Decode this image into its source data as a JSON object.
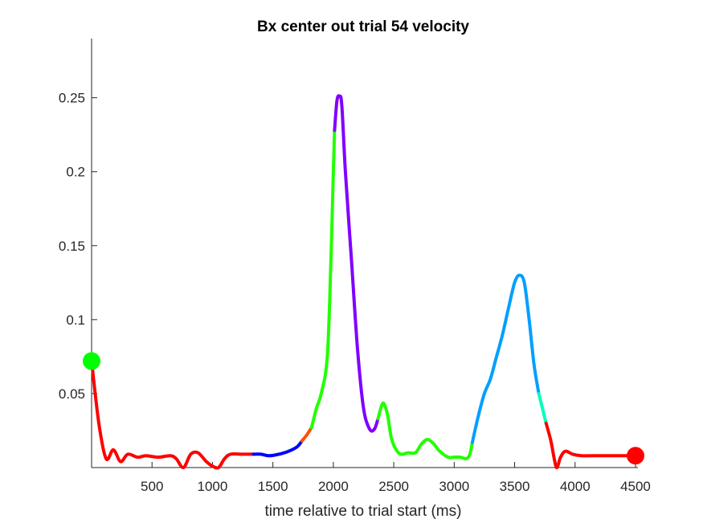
{
  "chart_data": {
    "type": "line",
    "title": "Bx  center out trial 54 velocity",
    "xlabel": "time relative to trial start (ms)",
    "ylabel": "",
    "xlim": [
      0,
      4520
    ],
    "ylim": [
      0,
      0.29
    ],
    "xticks": [
      500,
      1000,
      1500,
      2000,
      2500,
      3000,
      3500,
      4000,
      4500
    ],
    "xtick_labels": [
      "500",
      "1000",
      "1500",
      "2000",
      "2500",
      "3000",
      "3500",
      "4000",
      "4500"
    ],
    "yticks": [
      0.05,
      0.1,
      0.15,
      0.2,
      0.25
    ],
    "ytick_labels": [
      "0.05",
      "0.1",
      "0.15",
      "0.2",
      "0.25"
    ],
    "grid": false,
    "segments": [
      {
        "color": "#ff0000",
        "points": [
          [
            0,
            0.072
          ],
          [
            60,
            0.03
          ],
          [
            120,
            0.006
          ],
          [
            180,
            0.012
          ],
          [
            240,
            0.004
          ],
          [
            300,
            0.009
          ],
          [
            380,
            0.007
          ],
          [
            450,
            0.008
          ],
          [
            550,
            0.007
          ],
          [
            650,
            0.008
          ],
          [
            700,
            0.006
          ],
          [
            760,
            0.0
          ],
          [
            820,
            0.009
          ],
          [
            880,
            0.01
          ],
          [
            950,
            0.004
          ],
          [
            1000,
            0.001
          ],
          [
            1050,
            0.0
          ],
          [
            1100,
            0.006
          ],
          [
            1150,
            0.009
          ],
          [
            1250,
            0.009
          ],
          [
            1340,
            0.009
          ]
        ]
      },
      {
        "color": "#0000ff",
        "points": [
          [
            1340,
            0.009
          ],
          [
            1400,
            0.009
          ],
          [
            1470,
            0.008
          ],
          [
            1550,
            0.009
          ],
          [
            1630,
            0.011
          ],
          [
            1700,
            0.014
          ],
          [
            1740,
            0.018
          ]
        ]
      },
      {
        "color": "#ff5000",
        "points": [
          [
            1740,
            0.018
          ],
          [
            1780,
            0.022
          ],
          [
            1820,
            0.027
          ]
        ]
      },
      {
        "color": "#22ff00",
        "points": [
          [
            1820,
            0.027
          ],
          [
            1860,
            0.04
          ],
          [
            1900,
            0.05
          ],
          [
            1950,
            0.075
          ],
          [
            1980,
            0.14
          ],
          [
            2000,
            0.2
          ],
          [
            2010,
            0.228
          ]
        ]
      },
      {
        "color": "#8000ff",
        "points": [
          [
            2010,
            0.228
          ],
          [
            2030,
            0.248
          ],
          [
            2050,
            0.251
          ],
          [
            2070,
            0.245
          ],
          [
            2100,
            0.2
          ],
          [
            2150,
            0.14
          ],
          [
            2200,
            0.08
          ],
          [
            2250,
            0.04
          ],
          [
            2300,
            0.026
          ],
          [
            2340,
            0.026
          ],
          [
            2370,
            0.033
          ]
        ]
      },
      {
        "color": "#22ff00",
        "points": [
          [
            2370,
            0.033
          ],
          [
            2400,
            0.042
          ],
          [
            2420,
            0.043
          ],
          [
            2450,
            0.035
          ],
          [
            2480,
            0.02
          ],
          [
            2520,
            0.012
          ],
          [
            2560,
            0.009
          ],
          [
            2620,
            0.01
          ],
          [
            2680,
            0.01
          ],
          [
            2730,
            0.016
          ],
          [
            2780,
            0.019
          ],
          [
            2830,
            0.016
          ],
          [
            2880,
            0.011
          ],
          [
            2950,
            0.007
          ],
          [
            3000,
            0.007
          ],
          [
            3050,
            0.007
          ],
          [
            3100,
            0.006
          ],
          [
            3130,
            0.009
          ],
          [
            3150,
            0.017
          ]
        ]
      },
      {
        "color": "#00a0ff",
        "points": [
          [
            3150,
            0.017
          ],
          [
            3200,
            0.035
          ],
          [
            3250,
            0.05
          ],
          [
            3300,
            0.06
          ],
          [
            3350,
            0.075
          ],
          [
            3400,
            0.09
          ],
          [
            3450,
            0.108
          ],
          [
            3500,
            0.125
          ],
          [
            3540,
            0.13
          ],
          [
            3580,
            0.125
          ],
          [
            3620,
            0.1
          ],
          [
            3660,
            0.07
          ],
          [
            3700,
            0.05
          ]
        ]
      },
      {
        "color": "#00ffc0",
        "points": [
          [
            3700,
            0.05
          ],
          [
            3730,
            0.04
          ],
          [
            3760,
            0.03
          ]
        ]
      },
      {
        "color": "#ff0000",
        "points": [
          [
            3760,
            0.03
          ],
          [
            3800,
            0.018
          ],
          [
            3830,
            0.005
          ],
          [
            3850,
            0.0
          ],
          [
            3880,
            0.007
          ],
          [
            3920,
            0.011
          ],
          [
            3980,
            0.009
          ],
          [
            4050,
            0.008
          ],
          [
            4150,
            0.008
          ],
          [
            4300,
            0.008
          ],
          [
            4400,
            0.008
          ],
          [
            4500,
            0.008
          ]
        ]
      }
    ],
    "markers": [
      {
        "x": 0,
        "y": 0.072,
        "color": "#00ff00"
      },
      {
        "x": 4500,
        "y": 0.008,
        "color": "#ff0000"
      }
    ]
  }
}
